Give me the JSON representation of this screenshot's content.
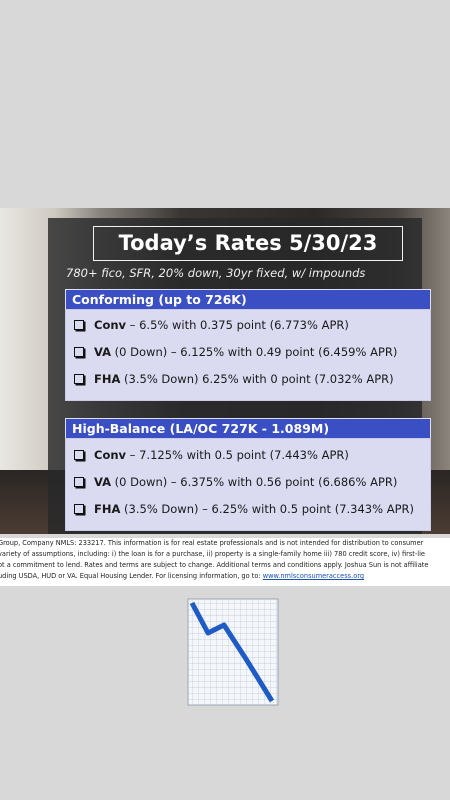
{
  "header": {
    "title": "Today’s Rates 5/30/23",
    "subtitle": "780+ fico, SFR, 20% down, 30yr fixed, w/ impounds"
  },
  "sections": [
    {
      "title": "Conforming (up to 726K)",
      "items": [
        {
          "label": "Conv",
          "text": " – 6.5% with 0.375 point (6.773% APR)"
        },
        {
          "label": "VA",
          "text": " (0 Down) – 6.125% with 0.49 point (6.459% APR)"
        },
        {
          "label": "FHA",
          "text": " (3.5% Down) 6.25% with 0 point (7.032% APR)"
        }
      ]
    },
    {
      "title": "High-Balance (LA/OC 727K - 1.089M)",
      "items": [
        {
          "label": "Conv",
          "text": " – 7.125% with 0.5 point (7.443% APR)"
        },
        {
          "label": "VA",
          "text": " (0 Down) – 6.375% with 0.56 point (6.686% APR)"
        },
        {
          "label": "FHA",
          "text": " (3.5% Down) – 6.25% with 0.5 point (7.343% APR)"
        }
      ]
    }
  ],
  "disclaimer": {
    "lines": [
      "Group, Company NMLS: 233217. This information is for real estate professionals and is not intended for distribution to consumer",
      "variety of assumptions, including: i) the loan is for a purchase, ii) property is a single-family home iii) 780 credit score, iv) first-lie",
      "ot a commitment to lend. Rates and terms are subject to change. Additional terms and conditions apply. Joshua Sun is not affiliate",
      "uding USDA, HUD or VA. Equal Housing Lender. For licensing information, go to: "
    ],
    "link": "www.nmlsconsumeraccess.org"
  }
}
